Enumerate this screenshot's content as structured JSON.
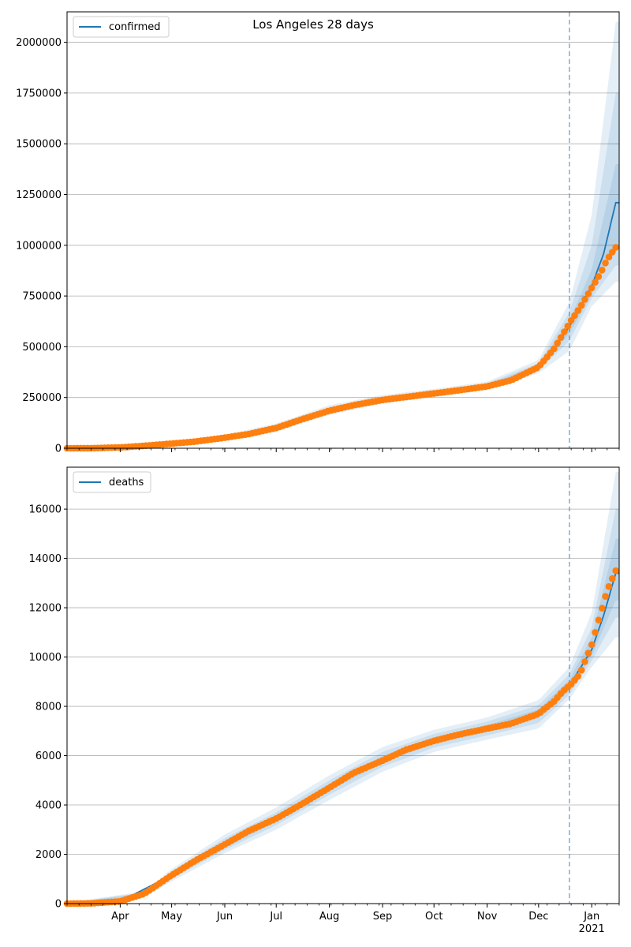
{
  "chart_data": [
    {
      "type": "line",
      "title": "Los Angeles 28 days",
      "legend": {
        "label": "confirmed",
        "placement": "top-left"
      },
      "ylim": [
        0,
        2150000
      ],
      "y_ticks": [
        0,
        250000,
        500000,
        750000,
        1000000,
        1250000,
        1500000,
        1750000,
        2000000
      ],
      "y_tick_labels": [
        "0",
        "250000",
        "500000",
        "750000",
        "1000000",
        "1250000",
        "1500000",
        "1750000",
        "2000000"
      ],
      "grid": "horizontal",
      "forecast_start": "2020-12-19",
      "colors": {
        "model": "#1f77b4",
        "observed": "#ff7f0e",
        "band": "#1f77b4"
      },
      "observed": [
        [
          "2020-03-01",
          0
        ],
        [
          "2020-03-15",
          500
        ],
        [
          "2020-04-01",
          4000
        ],
        [
          "2020-04-15",
          12000
        ],
        [
          "2020-05-01",
          23000
        ],
        [
          "2020-05-15",
          33000
        ],
        [
          "2020-06-01",
          52000
        ],
        [
          "2020-06-15",
          70000
        ],
        [
          "2020-07-01",
          100000
        ],
        [
          "2020-07-15",
          140000
        ],
        [
          "2020-08-01",
          185000
        ],
        [
          "2020-08-15",
          212000
        ],
        [
          "2020-09-01",
          238000
        ],
        [
          "2020-09-15",
          253000
        ],
        [
          "2020-10-01",
          270000
        ],
        [
          "2020-10-15",
          285000
        ],
        [
          "2020-11-01",
          305000
        ],
        [
          "2020-11-15",
          335000
        ],
        [
          "2020-12-01",
          400000
        ],
        [
          "2020-12-10",
          490000
        ],
        [
          "2020-12-15",
          560000
        ],
        [
          "2020-12-20",
          630000
        ],
        [
          "2020-12-25",
          690000
        ],
        [
          "2021-01-01",
          790000
        ],
        [
          "2021-01-06",
          860000
        ],
        [
          "2021-01-10",
          930000
        ],
        [
          "2021-01-15",
          990000
        ]
      ],
      "model": [
        [
          "2020-03-01",
          0
        ],
        [
          "2020-04-01",
          4000
        ],
        [
          "2020-05-01",
          23000
        ],
        [
          "2020-06-01",
          52000
        ],
        [
          "2020-07-01",
          102000
        ],
        [
          "2020-08-01",
          188000
        ],
        [
          "2020-09-01",
          240000
        ],
        [
          "2020-10-01",
          272000
        ],
        [
          "2020-11-01",
          308000
        ],
        [
          "2020-11-15",
          338000
        ],
        [
          "2020-12-01",
          400000
        ],
        [
          "2020-12-10",
          490000
        ],
        [
          "2020-12-19",
          600000
        ],
        [
          "2020-12-25",
          690000
        ],
        [
          "2021-01-01",
          800000
        ],
        [
          "2021-01-08",
          960000
        ],
        [
          "2021-01-15",
          1210000
        ]
      ],
      "bands": [
        {
          "name": "outer",
          "upper": [
            [
              "2020-03-01",
              2000
            ],
            [
              "2020-05-01",
              32000
            ],
            [
              "2020-06-01",
              66000
            ],
            [
              "2020-07-01",
              122000
            ],
            [
              "2020-08-01",
              212000
            ],
            [
              "2020-09-01",
              262000
            ],
            [
              "2020-10-01",
              292000
            ],
            [
              "2020-11-01",
              328000
            ],
            [
              "2020-12-01",
              435000
            ],
            [
              "2020-12-19",
              720000
            ],
            [
              "2021-01-01",
              1150000
            ],
            [
              "2021-01-15",
              2100000
            ]
          ],
          "lower": [
            [
              "2020-03-01",
              0
            ],
            [
              "2020-05-01",
              15000
            ],
            [
              "2020-06-01",
              38000
            ],
            [
              "2020-07-01",
              82000
            ],
            [
              "2020-08-01",
              165000
            ],
            [
              "2020-09-01",
              220000
            ],
            [
              "2020-10-01",
              252000
            ],
            [
              "2020-11-01",
              288000
            ],
            [
              "2020-12-01",
              370000
            ],
            [
              "2020-12-19",
              480000
            ],
            [
              "2021-01-01",
              700000
            ],
            [
              "2021-01-15",
              820000
            ]
          ]
        },
        {
          "name": "middle",
          "upper": [
            [
              "2020-03-01",
              1000
            ],
            [
              "2020-05-01",
              28000
            ],
            [
              "2020-06-01",
              60000
            ],
            [
              "2020-07-01",
              114000
            ],
            [
              "2020-08-01",
              202000
            ],
            [
              "2020-09-01",
              253000
            ],
            [
              "2020-10-01",
              284000
            ],
            [
              "2020-11-01",
              320000
            ],
            [
              "2020-12-01",
              420000
            ],
            [
              "2020-12-19",
              670000
            ],
            [
              "2021-01-01",
              1000000
            ],
            [
              "2021-01-15",
              1750000
            ]
          ],
          "lower": [
            [
              "2020-03-01",
              0
            ],
            [
              "2020-05-01",
              18000
            ],
            [
              "2020-06-01",
              44000
            ],
            [
              "2020-07-01",
              90000
            ],
            [
              "2020-08-01",
              174000
            ],
            [
              "2020-09-01",
              228000
            ],
            [
              "2020-10-01",
              260000
            ],
            [
              "2020-11-01",
              296000
            ],
            [
              "2020-12-01",
              382000
            ],
            [
              "2020-12-19",
              530000
            ],
            [
              "2021-01-01",
              740000
            ],
            [
              "2021-01-15",
              900000
            ]
          ]
        },
        {
          "name": "inner",
          "upper": [
            [
              "2020-03-01",
              500
            ],
            [
              "2020-05-01",
              25000
            ],
            [
              "2020-06-01",
              56000
            ],
            [
              "2020-07-01",
              108000
            ],
            [
              "2020-08-01",
              195000
            ],
            [
              "2020-09-01",
              246000
            ],
            [
              "2020-10-01",
              278000
            ],
            [
              "2020-11-01",
              314000
            ],
            [
              "2020-12-01",
              410000
            ],
            [
              "2020-12-19",
              630000
            ],
            [
              "2021-01-01",
              880000
            ],
            [
              "2021-01-15",
              1400000
            ]
          ],
          "lower": [
            [
              "2020-03-01",
              0
            ],
            [
              "2020-05-01",
              21000
            ],
            [
              "2020-06-01",
              48000
            ],
            [
              "2020-07-01",
              96000
            ],
            [
              "2020-08-01",
              181000
            ],
            [
              "2020-09-01",
              234000
            ],
            [
              "2020-10-01",
              266000
            ],
            [
              "2020-11-01",
              302000
            ],
            [
              "2020-12-01",
              390000
            ],
            [
              "2020-12-19",
              565000
            ],
            [
              "2021-01-01",
              760000
            ],
            [
              "2021-01-15",
              1000000
            ]
          ]
        }
      ]
    },
    {
      "type": "line",
      "legend": {
        "label": "deaths",
        "placement": "top-left"
      },
      "ylim": [
        0,
        17700
      ],
      "y_ticks": [
        0,
        2000,
        4000,
        6000,
        8000,
        10000,
        12000,
        14000,
        16000
      ],
      "y_tick_labels": [
        "0",
        "2000",
        "4000",
        "6000",
        "8000",
        "10000",
        "12000",
        "14000",
        "16000"
      ],
      "grid": "horizontal",
      "forecast_start": "2020-12-19",
      "x_tick_labels": [
        "Apr",
        "May",
        "Jun",
        "Jul",
        "Aug",
        "Sep",
        "Oct",
        "Nov",
        "Dec",
        "Jan"
      ],
      "x_year_label": "2021",
      "colors": {
        "model": "#1f77b4",
        "observed": "#ff7f0e",
        "band": "#1f77b4"
      },
      "observed": [
        [
          "2020-03-01",
          0
        ],
        [
          "2020-03-15",
          10
        ],
        [
          "2020-04-01",
          90
        ],
        [
          "2020-04-15",
          400
        ],
        [
          "2020-05-01",
          1150
        ],
        [
          "2020-05-15",
          1750
        ],
        [
          "2020-06-01",
          2400
        ],
        [
          "2020-06-15",
          2950
        ],
        [
          "2020-07-01",
          3450
        ],
        [
          "2020-07-15",
          4000
        ],
        [
          "2020-08-01",
          4700
        ],
        [
          "2020-08-15",
          5300
        ],
        [
          "2020-09-01",
          5800
        ],
        [
          "2020-09-15",
          6250
        ],
        [
          "2020-10-01",
          6600
        ],
        [
          "2020-10-15",
          6850
        ],
        [
          "2020-11-01",
          7100
        ],
        [
          "2020-11-15",
          7300
        ],
        [
          "2020-12-01",
          7700
        ],
        [
          "2020-12-10",
          8200
        ],
        [
          "2020-12-15",
          8600
        ],
        [
          "2020-12-20",
          8900
        ],
        [
          "2020-12-25",
          9300
        ],
        [
          "2021-01-01",
          10500
        ],
        [
          "2021-01-05",
          11500
        ],
        [
          "2021-01-10",
          12700
        ],
        [
          "2021-01-15",
          13500
        ]
      ],
      "model": [
        [
          "2020-03-01",
          0
        ],
        [
          "2020-04-01",
          90
        ],
        [
          "2020-05-01",
          1150
        ],
        [
          "2020-06-01",
          2400
        ],
        [
          "2020-07-01",
          3450
        ],
        [
          "2020-08-01",
          4720
        ],
        [
          "2020-09-01",
          5850
        ],
        [
          "2020-10-01",
          6620
        ],
        [
          "2020-11-01",
          7100
        ],
        [
          "2020-12-01",
          7700
        ],
        [
          "2020-12-19",
          8850
        ],
        [
          "2021-01-01",
          10300
        ],
        [
          "2021-01-08",
          11700
        ],
        [
          "2021-01-15",
          13400
        ]
      ],
      "bands": [
        {
          "name": "outer",
          "upper": [
            [
              "2020-03-01",
              30
            ],
            [
              "2020-04-15",
              500
            ],
            [
              "2020-05-01",
              1400
            ],
            [
              "2020-06-01",
              2800
            ],
            [
              "2020-07-01",
              3900
            ],
            [
              "2020-08-01",
              5200
            ],
            [
              "2020-09-01",
              6350
            ],
            [
              "2020-10-01",
              7050
            ],
            [
              "2020-11-01",
              7550
            ],
            [
              "2020-12-01",
              8250
            ],
            [
              "2020-12-19",
              9600
            ],
            [
              "2021-01-01",
              11800
            ],
            [
              "2021-01-15",
              17500
            ]
          ],
          "lower": [
            [
              "2020-03-01",
              0
            ],
            [
              "2020-04-15",
              250
            ],
            [
              "2020-05-01",
              900
            ],
            [
              "2020-06-01",
              2050
            ],
            [
              "2020-07-01",
              3000
            ],
            [
              "2020-08-01",
              4200
            ],
            [
              "2020-09-01",
              5350
            ],
            [
              "2020-10-01",
              6150
            ],
            [
              "2020-11-01",
              6650
            ],
            [
              "2020-12-01",
              7100
            ],
            [
              "2020-12-19",
              8300
            ],
            [
              "2021-01-01",
              9600
            ],
            [
              "2021-01-15",
              10800
            ]
          ]
        },
        {
          "name": "middle",
          "upper": [
            [
              "2020-03-01",
              20
            ],
            [
              "2020-04-15",
              450
            ],
            [
              "2020-05-01",
              1300
            ],
            [
              "2020-06-01",
              2650
            ],
            [
              "2020-07-01",
              3700
            ],
            [
              "2020-08-01",
              5000
            ],
            [
              "2020-09-01",
              6150
            ],
            [
              "2020-10-01",
              6880
            ],
            [
              "2020-11-01",
              7380
            ],
            [
              "2020-12-01",
              8050
            ],
            [
              "2020-12-19",
              9300
            ],
            [
              "2021-01-01",
              11200
            ],
            [
              "2021-01-15",
              16000
            ]
          ],
          "lower": [
            [
              "2020-03-01",
              0
            ],
            [
              "2020-04-15",
              300
            ],
            [
              "2020-05-01",
              1000
            ],
            [
              "2020-06-01",
              2180
            ],
            [
              "2020-07-01",
              3180
            ],
            [
              "2020-08-01",
              4420
            ],
            [
              "2020-09-01",
              5550
            ],
            [
              "2020-10-01",
              6330
            ],
            [
              "2020-11-01",
              6820
            ],
            [
              "2020-12-01",
              7320
            ],
            [
              "2020-12-19",
              8480
            ],
            [
              "2021-01-01",
              9850
            ],
            [
              "2021-01-15",
              11600
            ]
          ]
        },
        {
          "name": "inner",
          "upper": [
            [
              "2020-03-01",
              10
            ],
            [
              "2020-04-15",
              420
            ],
            [
              "2020-05-01",
              1230
            ],
            [
              "2020-06-01",
              2530
            ],
            [
              "2020-07-01",
              3580
            ],
            [
              "2020-08-01",
              4860
            ],
            [
              "2020-09-01",
              5990
            ],
            [
              "2020-10-01",
              6750
            ],
            [
              "2020-11-01",
              7240
            ],
            [
              "2020-12-01",
              7880
            ],
            [
              "2020-12-19",
              9080
            ],
            [
              "2021-01-01",
              10800
            ],
            [
              "2021-01-15",
              14800
            ]
          ],
          "lower": [
            [
              "2020-03-01",
              0
            ],
            [
              "2020-04-15",
              350
            ],
            [
              "2020-05-01",
              1070
            ],
            [
              "2020-06-01",
              2270
            ],
            [
              "2020-07-01",
              3320
            ],
            [
              "2020-08-01",
              4580
            ],
            [
              "2020-09-01",
              5710
            ],
            [
              "2020-10-01",
              6490
            ],
            [
              "2020-11-01",
              6960
            ],
            [
              "2020-12-01",
              7520
            ],
            [
              "2020-12-19",
              8630
            ],
            [
              "2021-01-01",
              10050
            ],
            [
              "2021-01-15",
              12300
            ]
          ]
        }
      ]
    }
  ]
}
